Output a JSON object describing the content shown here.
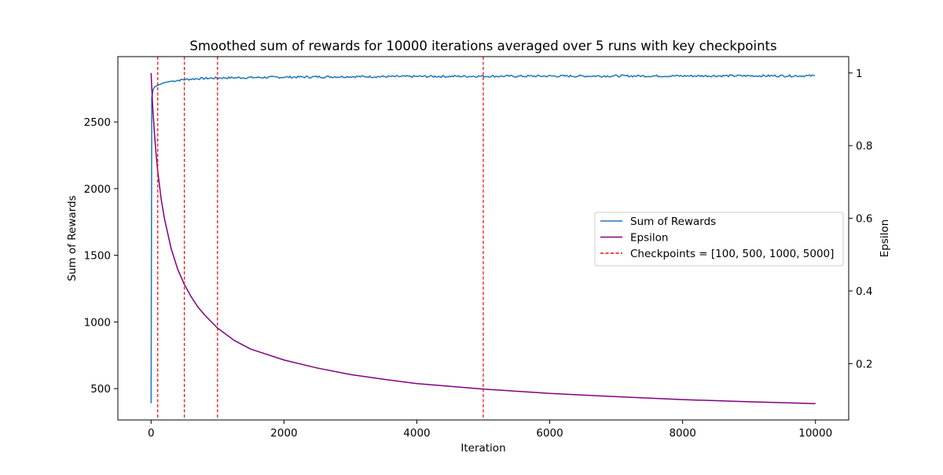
{
  "chart_data": {
    "type": "line",
    "title": "Smoothed sum of rewards for 10000 iterations averaged over 5 runs with key checkpoints",
    "xlabel": "Iteration",
    "ylabel": "Sum of Rewards",
    "y2label": "Epsilon",
    "xlim": [
      -500,
      10500
    ],
    "ylim": [
      265,
      2990
    ],
    "y2lim": [
      0.045,
      1.045
    ],
    "xticks": [
      0,
      2000,
      4000,
      6000,
      8000,
      10000
    ],
    "yticks": [
      500,
      1000,
      1500,
      2000,
      2500
    ],
    "y2ticks": [
      0.2,
      0.4,
      0.6,
      0.8,
      1.0
    ],
    "grid": false,
    "legend_position": "center-right",
    "series": [
      {
        "name": "Sum of Rewards",
        "axis": "left",
        "color": "#1f77b4",
        "x": [
          0,
          10,
          20,
          40,
          60,
          100,
          150,
          200,
          300,
          400,
          500,
          700,
          1000,
          1500,
          2000,
          2500,
          3000,
          3500,
          4000,
          4500,
          5000,
          5500,
          6000,
          6500,
          7000,
          7500,
          8000,
          8500,
          9000,
          9500,
          10000
        ],
        "y": [
          390,
          2680,
          2730,
          2755,
          2765,
          2775,
          2785,
          2795,
          2805,
          2812,
          2818,
          2825,
          2830,
          2833,
          2836,
          2838,
          2840,
          2840,
          2841,
          2842,
          2843,
          2843,
          2844,
          2844,
          2845,
          2845,
          2845,
          2846,
          2846,
          2846,
          2846
        ],
        "noise_amplitude": 8
      },
      {
        "name": "Epsilon",
        "axis": "right",
        "color": "#800080",
        "x": [
          0,
          10,
          25,
          50,
          75,
          100,
          150,
          200,
          300,
          400,
          500,
          600,
          700,
          800,
          1000,
          1250,
          1500,
          2000,
          2500,
          3000,
          3500,
          4000,
          5000,
          6000,
          7000,
          8000,
          9000,
          10000
        ],
        "y": [
          1.0,
          0.96,
          0.905,
          0.835,
          0.778,
          0.73,
          0.655,
          0.6,
          0.518,
          0.46,
          0.418,
          0.385,
          0.357,
          0.335,
          0.298,
          0.264,
          0.24,
          0.21,
          0.188,
          0.17,
          0.157,
          0.145,
          0.13,
          0.118,
          0.109,
          0.101,
          0.095,
          0.09
        ]
      },
      {
        "name": "Checkpoints = [100, 500, 1000, 5000]",
        "type": "vline",
        "color": "#ff0000",
        "dashed": true,
        "x": [
          100,
          500,
          1000,
          5000
        ]
      }
    ]
  }
}
